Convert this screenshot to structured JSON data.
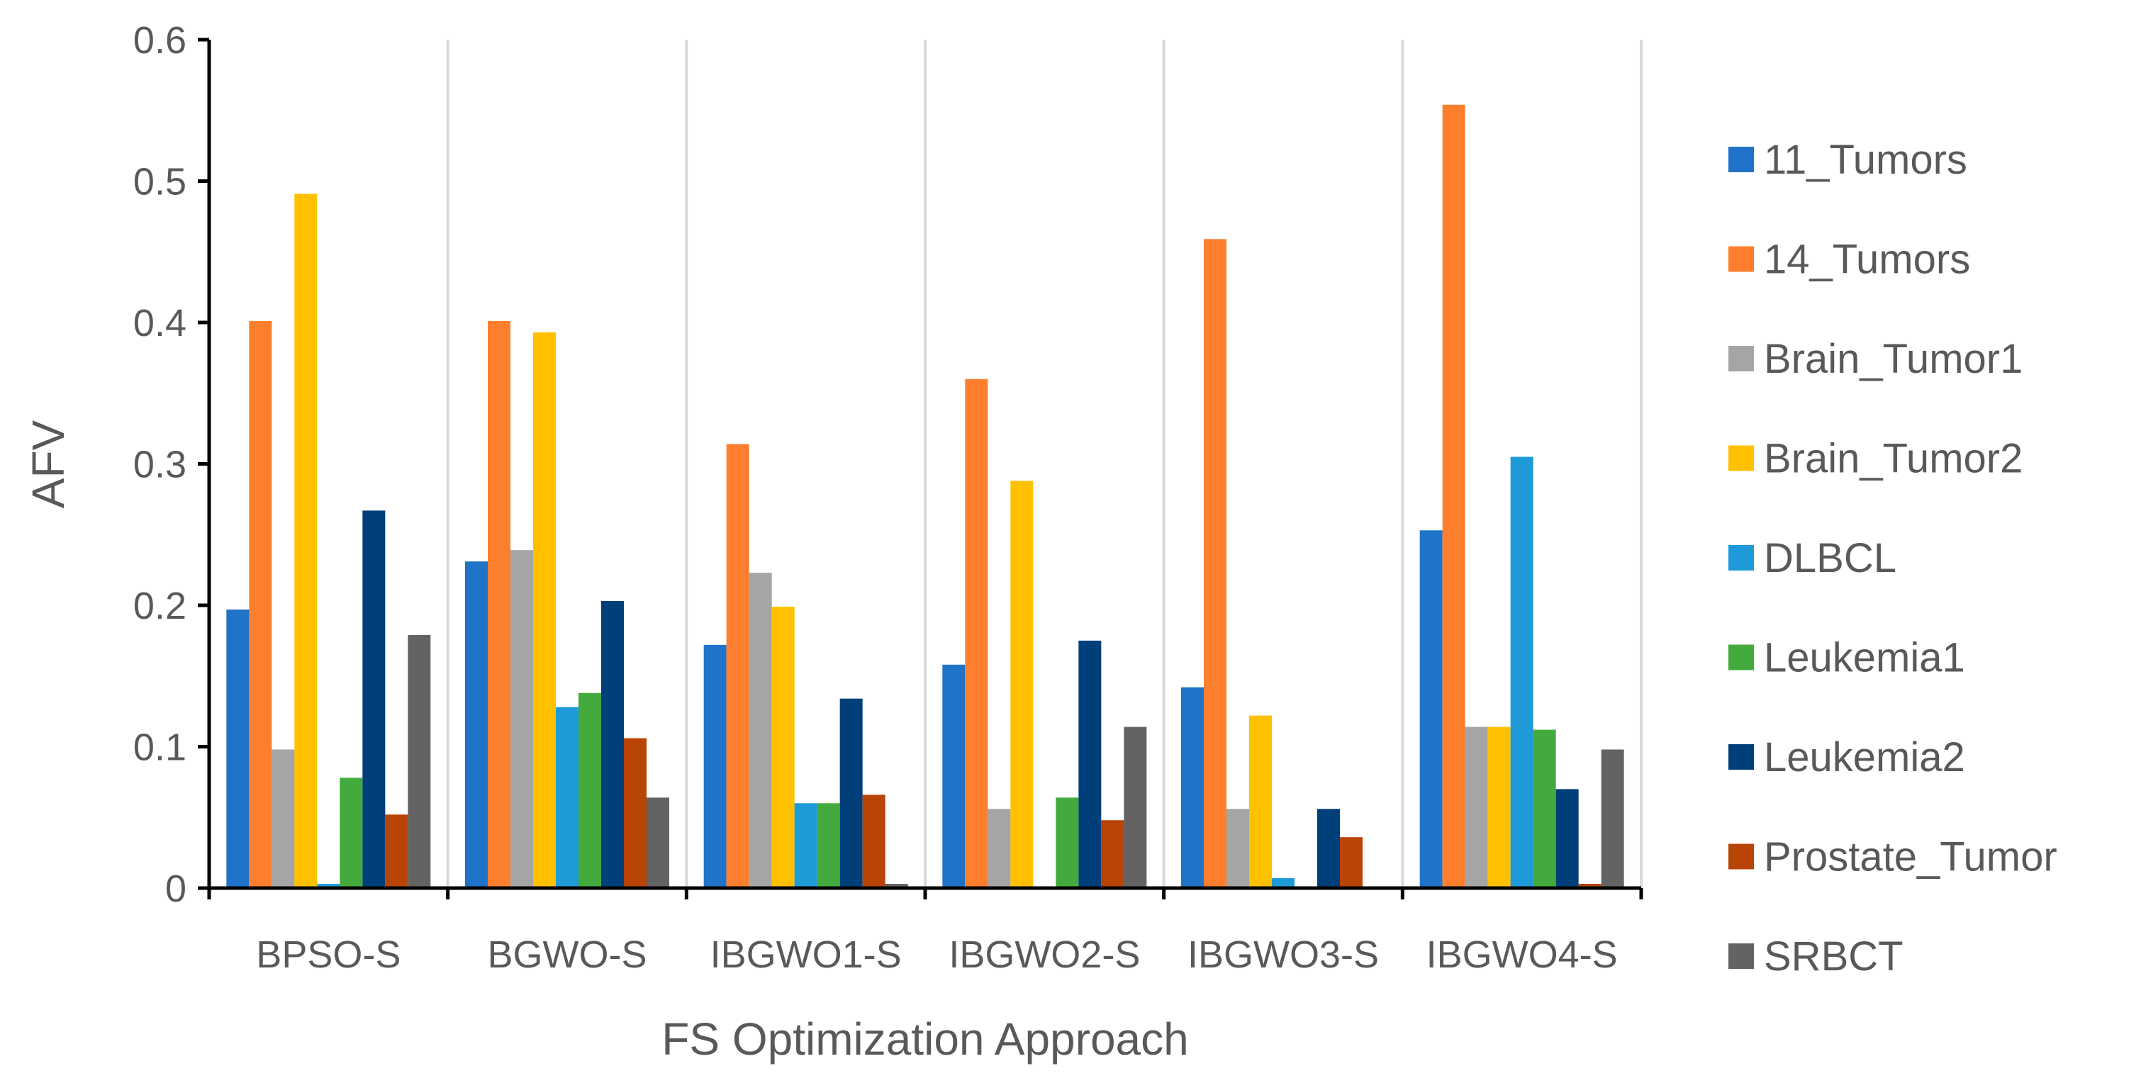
{
  "chart_data": {
    "type": "bar",
    "title": "",
    "xlabel": "FS Optimization Approach",
    "ylabel": "AFV",
    "ylim": [
      0,
      0.6
    ],
    "yticks": [
      "0",
      "0.1",
      "0.2",
      "0.3",
      "0.4",
      "0.5",
      "0.6"
    ],
    "grid": "vertical separators between categories",
    "legend": "right",
    "categories": [
      "BPSO-S",
      "BGWO-S",
      "IBGWO1-S",
      "IBGWO2-S",
      "IBGWO3-S",
      "IBGWO4-S"
    ],
    "series": [
      {
        "name": "11_Tumors",
        "color": "#1f73c8",
        "values": [
          0.197,
          0.231,
          0.172,
          0.158,
          0.142,
          0.253
        ]
      },
      {
        "name": "14_Tumors",
        "color": "#fd7f2d",
        "values": [
          0.401,
          0.401,
          0.314,
          0.36,
          0.459,
          0.554
        ]
      },
      {
        "name": "Brain_Tumor1",
        "color": "#a5a5a5",
        "values": [
          0.098,
          0.239,
          0.223,
          0.056,
          0.056,
          0.114
        ]
      },
      {
        "name": "Brain_Tumor2",
        "color": "#ffc000",
        "values": [
          0.491,
          0.393,
          0.199,
          0.288,
          0.122,
          0.114
        ]
      },
      {
        "name": "DLBCL",
        "color": "#1f9ad8",
        "values": [
          0.003,
          0.128,
          0.06,
          0.0,
          0.007,
          0.305
        ]
      },
      {
        "name": "Leukemia1",
        "color": "#43ab3d",
        "values": [
          0.078,
          0.138,
          0.06,
          0.064,
          0.0,
          0.112
        ]
      },
      {
        "name": "Leukemia2",
        "color": "#003f7a",
        "values": [
          0.267,
          0.203,
          0.134,
          0.175,
          0.056,
          0.07
        ]
      },
      {
        "name": "Prostate_Tumor",
        "color": "#b84407",
        "values": [
          0.052,
          0.106,
          0.066,
          0.048,
          0.036,
          0.003
        ]
      },
      {
        "name": "SRBCT",
        "color": "#636363",
        "values": [
          0.179,
          0.064,
          0.003,
          0.114,
          0.0,
          0.098
        ]
      }
    ]
  }
}
